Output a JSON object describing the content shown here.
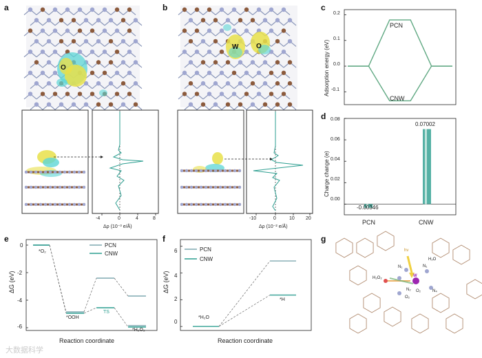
{
  "panels": {
    "a": "a",
    "b": "b",
    "c": "c",
    "d": "d",
    "e": "e",
    "f": "f",
    "g": "g"
  },
  "panel_a": {
    "atom_label": "O",
    "xaxis_label": "Δρ (10⁻³ e/Å)",
    "ticks": [
      "-4",
      "0",
      "4",
      "8"
    ]
  },
  "panel_b": {
    "atom_label_w": "W",
    "atom_label_o": "O",
    "xaxis_label": "Δρ (10⁻² e/Å)",
    "ticks": [
      "-10",
      "0",
      "10",
      "20"
    ]
  },
  "chart_data": [
    {
      "panel": "c",
      "type": "line",
      "ylabel": "Adsorption energy (eV)",
      "ylim": [
        -0.15,
        0.22
      ],
      "yticks": [
        "0.2",
        "0.1",
        "0.0",
        "-0.1"
      ],
      "series": [
        {
          "name": "PCN",
          "points": [
            [
              0,
              0.0
            ],
            [
              1,
              0.0
            ],
            [
              2,
              0.18
            ],
            [
              3,
              0.18
            ],
            [
              4,
              0.0
            ],
            [
              5,
              0.0
            ]
          ]
        },
        {
          "name": "CNW",
          "points": [
            [
              0,
              0.0
            ],
            [
              1,
              0.0
            ],
            [
              2,
              -0.135
            ],
            [
              3,
              -0.135
            ],
            [
              4,
              0.0
            ],
            [
              5,
              0.0
            ]
          ]
        }
      ]
    },
    {
      "panel": "d",
      "type": "bar",
      "ylabel": "Charge change (e)",
      "ylim": [
        -0.01,
        0.08
      ],
      "yticks": [
        "0.08",
        "0.06",
        "0.04",
        "0.02",
        "0.00"
      ],
      "categories": [
        "PCN",
        "CNW"
      ],
      "values": [
        -0.00346,
        0.07002
      ],
      "value_labels": [
        "-0.00346",
        "0.07002"
      ]
    },
    {
      "panel": "e",
      "type": "line",
      "ylabel": "ΔG (eV)",
      "xlabel": "Reaction coordinate",
      "ylim": [
        -6.2,
        0.4
      ],
      "yticks": [
        "0",
        "-2",
        "-4",
        "-6"
      ],
      "series": [
        {
          "name": "PCN",
          "levels": [
            0.0,
            -4.85,
            -2.4,
            -3.7,
            -5.85
          ]
        },
        {
          "name": "CNW",
          "levels": [
            0.0,
            -4.95,
            -4.55,
            -5.95
          ]
        }
      ],
      "annotations": [
        "*O₂",
        "*OOH",
        "TS",
        "*H₂O₂"
      ]
    },
    {
      "panel": "f",
      "type": "line",
      "ylabel": "ΔG (eV)",
      "xlabel": "Reaction coordinate",
      "ylim": [
        -0.3,
        6.5
      ],
      "yticks": [
        "6",
        "4",
        "2",
        "0"
      ],
      "series": [
        {
          "name": "PCN",
          "levels": [
            0.0,
            4.9
          ]
        },
        {
          "name": "CNW",
          "levels": [
            0.0,
            2.35
          ]
        }
      ],
      "annotations": [
        "*H₂O",
        "*H"
      ]
    }
  ],
  "legend_e": {
    "pcn": "PCN",
    "cnw": "CNW"
  },
  "legend_f": {
    "pcn": "PCN",
    "cnw": "CNW"
  },
  "labels_c": {
    "pcn": "PCN",
    "cnw": "CNW"
  },
  "labels_d": {
    "pcn": "PCN",
    "cnw": "CNW"
  },
  "panel_g": {
    "hv": "hν",
    "h2o": "H₂O",
    "h2o2": "H₂O₂",
    "n1a": "N₁",
    "n1b": "N₁",
    "n2": "N₂",
    "n4": "N₄",
    "w": "W",
    "o2": "O₂",
    "o2b": "O₂"
  },
  "colors": {
    "pcn": "#7fa9b0",
    "cnw": "#2a9d8f",
    "green_line": "#5fa882",
    "yellow": "#e8e04a",
    "cyan": "#5cd6d6",
    "brown": "#8b5a3c",
    "lavender": "#9fa6d0"
  },
  "watermark": "大数据科学"
}
